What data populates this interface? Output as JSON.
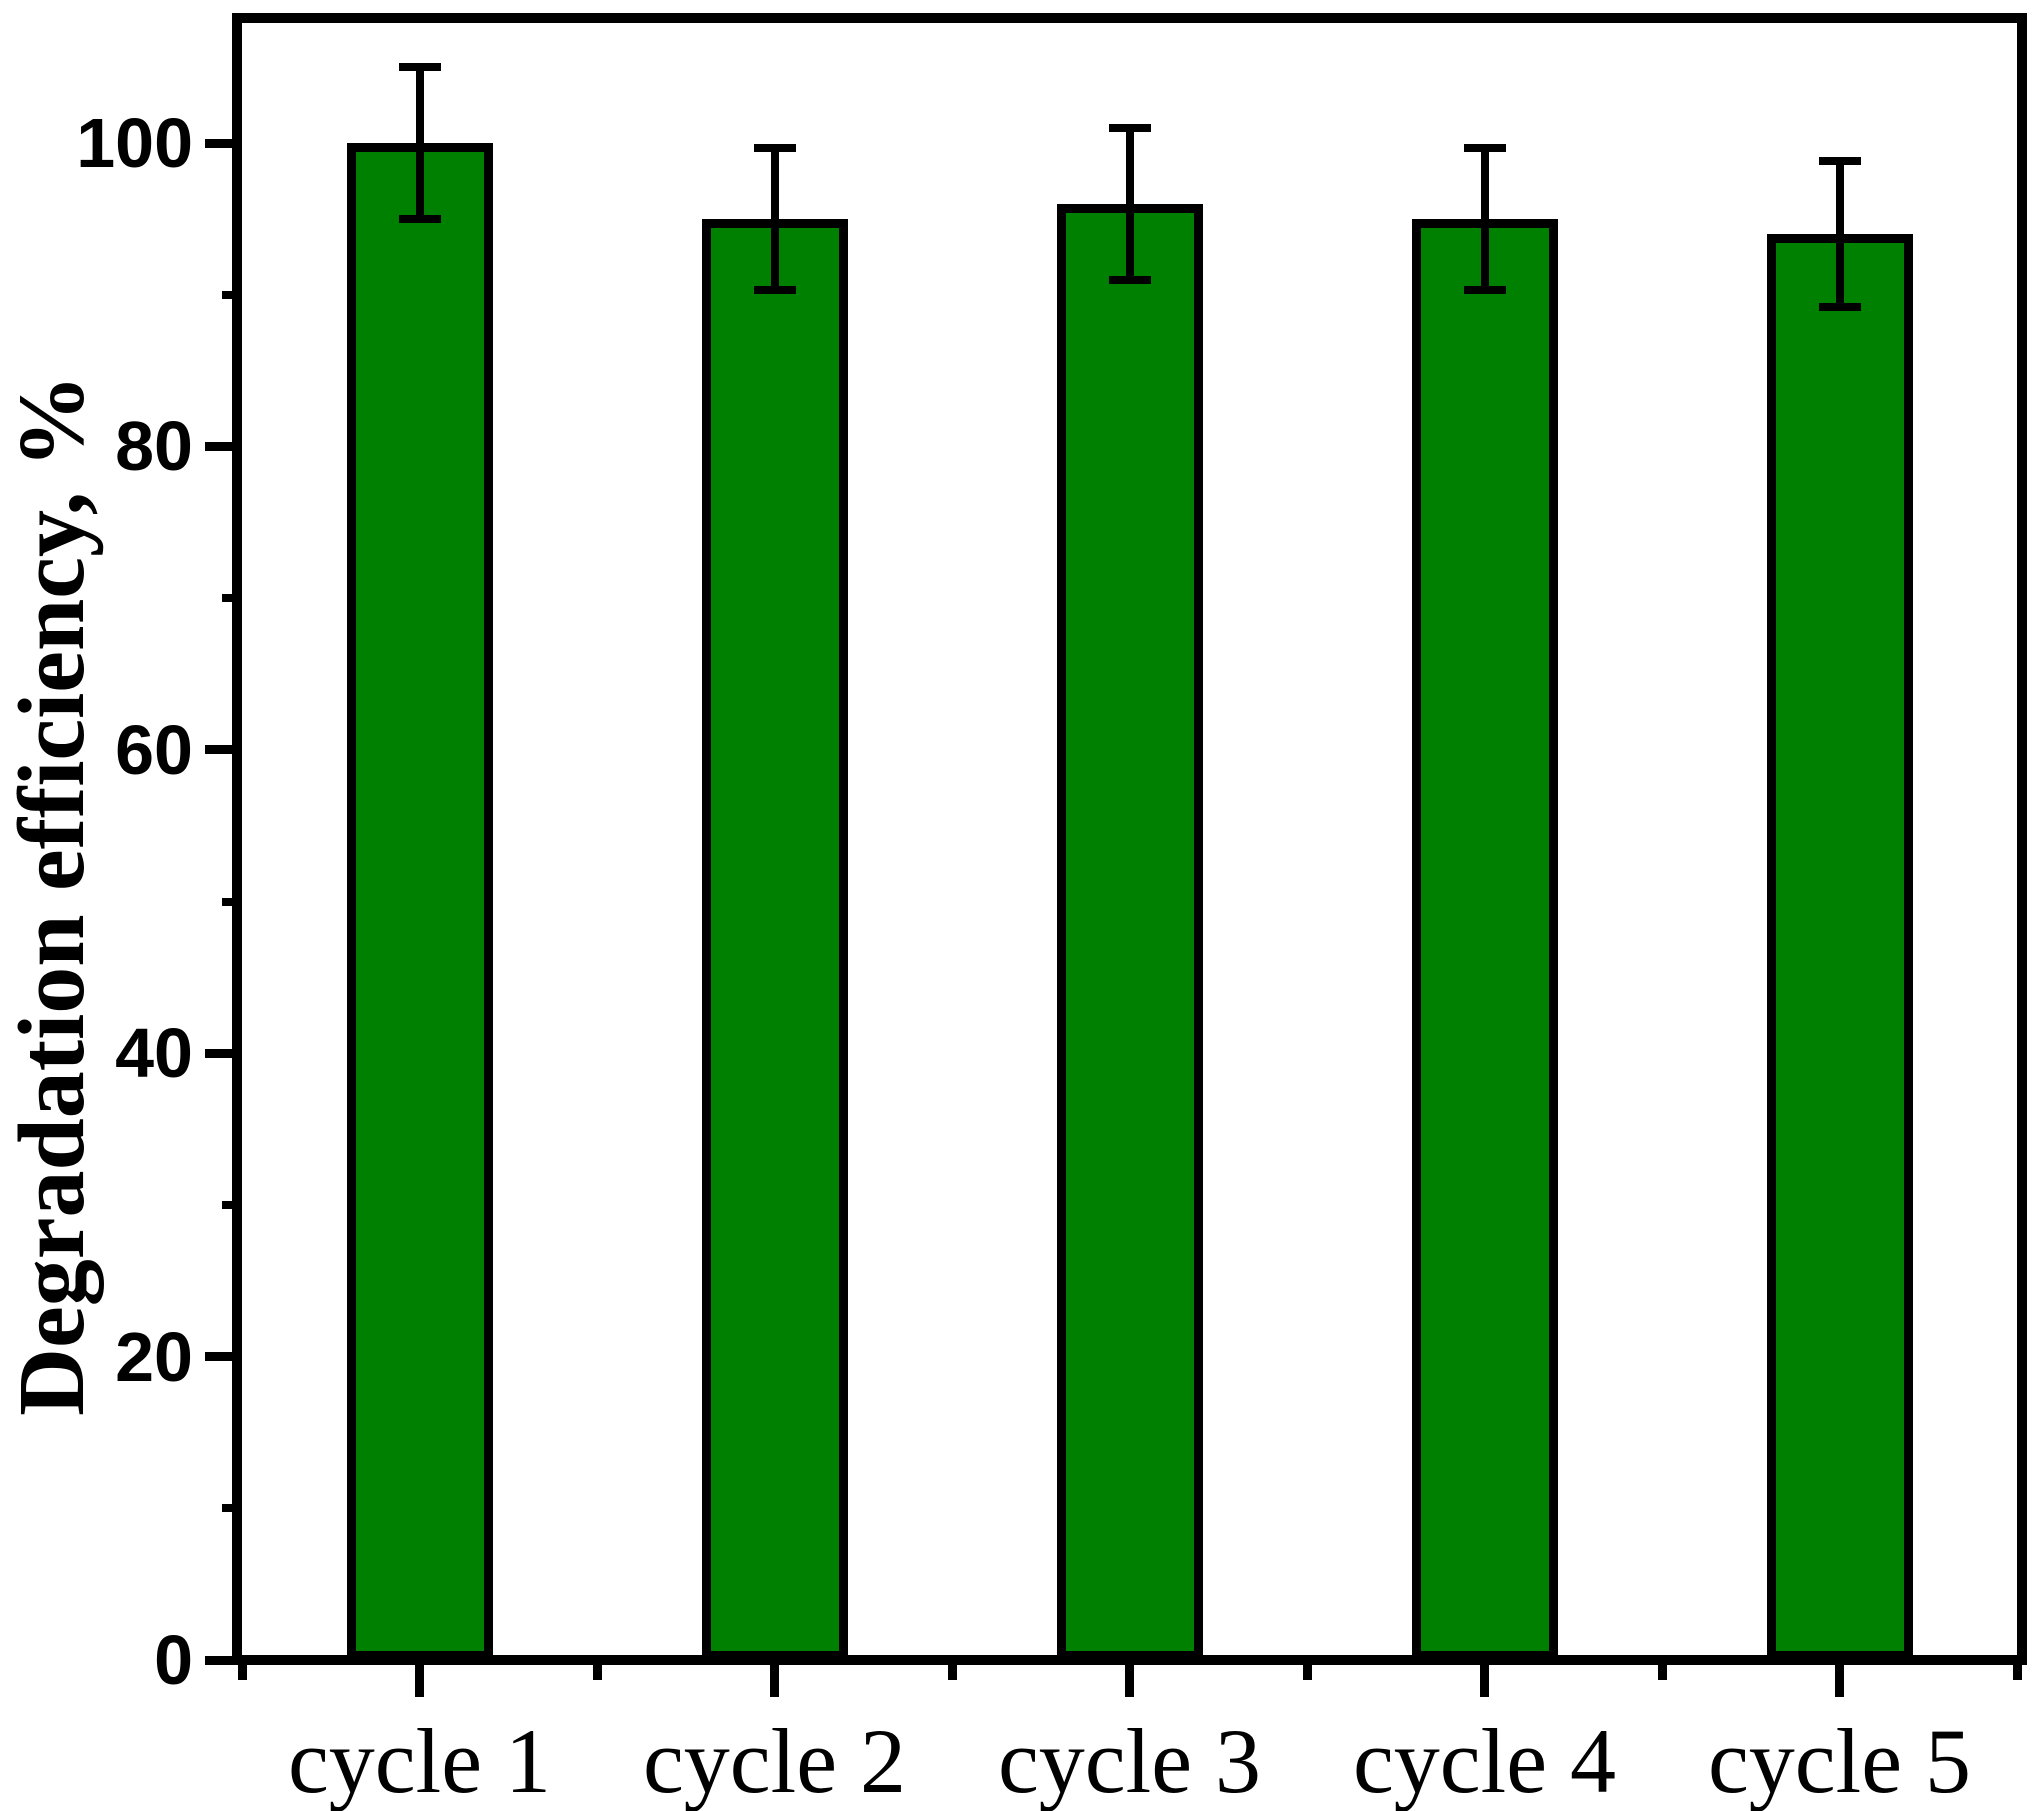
{
  "chart_data": {
    "type": "bar",
    "title": "",
    "xlabel": "",
    "ylabel": "Degradation efficiency, %",
    "categories": [
      "cycle 1",
      "cycle 2",
      "cycle 3",
      "cycle 4",
      "cycle 5"
    ],
    "values": [
      100,
      95,
      96,
      95,
      94
    ],
    "errors": [
      5,
      4.7,
      5,
      4.7,
      4.8
    ],
    "ylim": [
      0,
      108
    ],
    "yticks_major": [
      0,
      20,
      40,
      60,
      80,
      100
    ],
    "yticks_minor": [
      10,
      30,
      50,
      70,
      90
    ],
    "grid": false,
    "legend": "none",
    "bar_color": "#008000",
    "bar_border_color": "#000000",
    "error_bar_color": "#000000",
    "axis_color": "#000000",
    "background_color": "#ffffff"
  }
}
